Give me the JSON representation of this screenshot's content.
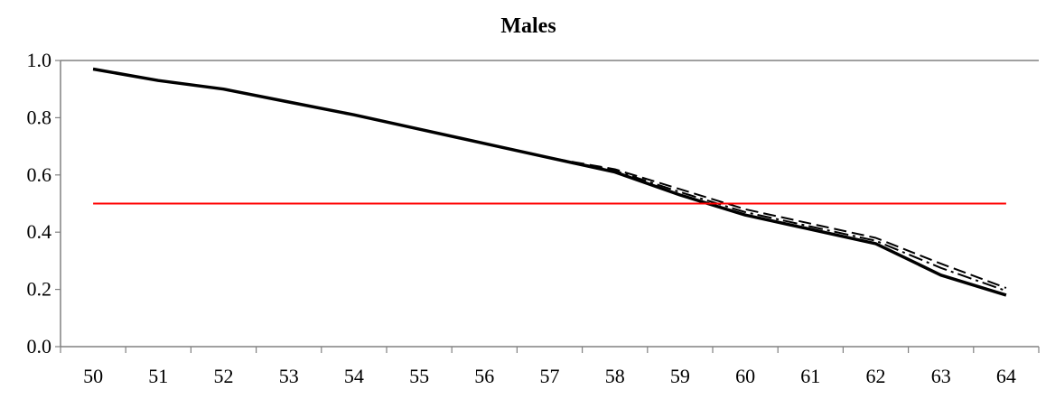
{
  "chart_data": {
    "type": "line",
    "title": "Males",
    "xlabel": "",
    "ylabel": "",
    "x": [
      50,
      51,
      52,
      53,
      54,
      55,
      56,
      57,
      58,
      59,
      60,
      61,
      62,
      63,
      64
    ],
    "x_tick_labels": [
      "50",
      "51",
      "52",
      "53",
      "54",
      "55",
      "56",
      "57",
      "58",
      "59",
      "60",
      "61",
      "62",
      "63",
      "64"
    ],
    "y_tick_labels": [
      "0.0",
      "0.2",
      "0.4",
      "0.6",
      "0.8",
      "1.0"
    ],
    "y_ticks": [
      0.0,
      0.2,
      0.4,
      0.6,
      0.8,
      1.0
    ],
    "ylim": [
      0,
      1
    ],
    "grid": false,
    "series": [
      {
        "style": "solid",
        "color": "#000000",
        "values": [
          0.97,
          0.93,
          0.9,
          0.855,
          0.81,
          0.76,
          0.71,
          0.66,
          0.61,
          0.53,
          0.46,
          0.41,
          0.36,
          0.25,
          0.18
        ]
      },
      {
        "style": "dashed",
        "color": "#000000",
        "values": [
          0.97,
          0.93,
          0.9,
          0.855,
          0.81,
          0.76,
          0.71,
          0.66,
          0.62,
          0.55,
          0.48,
          0.43,
          0.38,
          0.29,
          0.205
        ]
      },
      {
        "style": "dashdot",
        "color": "#000000",
        "values": [
          0.97,
          0.93,
          0.9,
          0.855,
          0.81,
          0.76,
          0.71,
          0.66,
          0.615,
          0.54,
          0.47,
          0.42,
          0.37,
          0.275,
          0.195
        ]
      },
      {
        "style": "solid",
        "color": "#ff0000",
        "values": [
          0.5,
          0.5,
          0.5,
          0.5,
          0.5,
          0.5,
          0.5,
          0.5,
          0.5,
          0.5,
          0.5,
          0.5,
          0.5,
          0.5,
          0.5
        ]
      }
    ]
  }
}
